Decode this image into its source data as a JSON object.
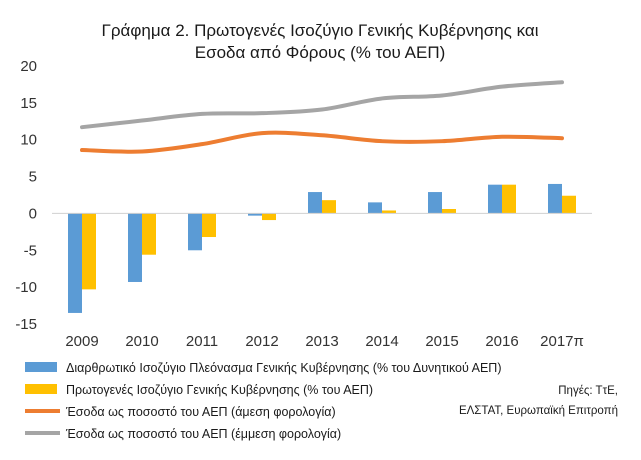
{
  "chart_data": {
    "type": "bar",
    "title_lines": [
      "Γράφημα 2. Πρωτογενές Ισοζύγιο Γενικής Κυβέρνησης και",
      "Εσοδα από Φόρους (% του ΑΕΠ)"
    ],
    "categories": [
      "2009",
      "2010",
      "2011",
      "2012",
      "2013",
      "2014",
      "2015",
      "2016",
      "2017π"
    ],
    "ylim": [
      -15,
      20
    ],
    "yticks": [
      -15,
      -10,
      -5,
      0,
      5,
      10,
      15,
      20
    ],
    "grid": false,
    "bar_series": [
      {
        "name": "Διαρθρωτικό Ισοζύγιο Πλεόνασμα Γενικής Κυβέρνησης (% του Δυνητικού ΑΕΠ)",
        "color": "#5b9bd5",
        "values": [
          -13.5,
          -9.3,
          -5.0,
          -0.3,
          2.9,
          1.5,
          2.9,
          3.9,
          4.0
        ]
      },
      {
        "name": "Πρωτογενές Ισοζύγιο Γενικής Κυβέρνησης (% του ΑΕΠ)",
        "color": "#ffc000",
        "values": [
          -10.3,
          -5.6,
          -3.2,
          -0.9,
          1.8,
          0.4,
          0.6,
          3.9,
          2.4
        ]
      }
    ],
    "line_series": [
      {
        "name": "Έσοδα ως ποσοστό του ΑΕΠ (άμεση φορολογία)",
        "color": "#ed7d31",
        "values": [
          8.6,
          8.4,
          9.4,
          10.9,
          10.6,
          9.8,
          9.8,
          10.4,
          10.2
        ]
      },
      {
        "name": "Έσοδα ως ποσοστό του ΑΕΠ (έμμεση φορολογία)",
        "color": "#a5a5a5",
        "values": [
          11.7,
          12.6,
          13.5,
          13.6,
          14.1,
          15.6,
          16.0,
          17.2,
          17.8
        ]
      }
    ],
    "source_lines": [
      "Πηγές: ΤτΕ,",
      "ΕΛΣΤΑΤ, Ευρωπαϊκή Επιτροπή"
    ]
  }
}
